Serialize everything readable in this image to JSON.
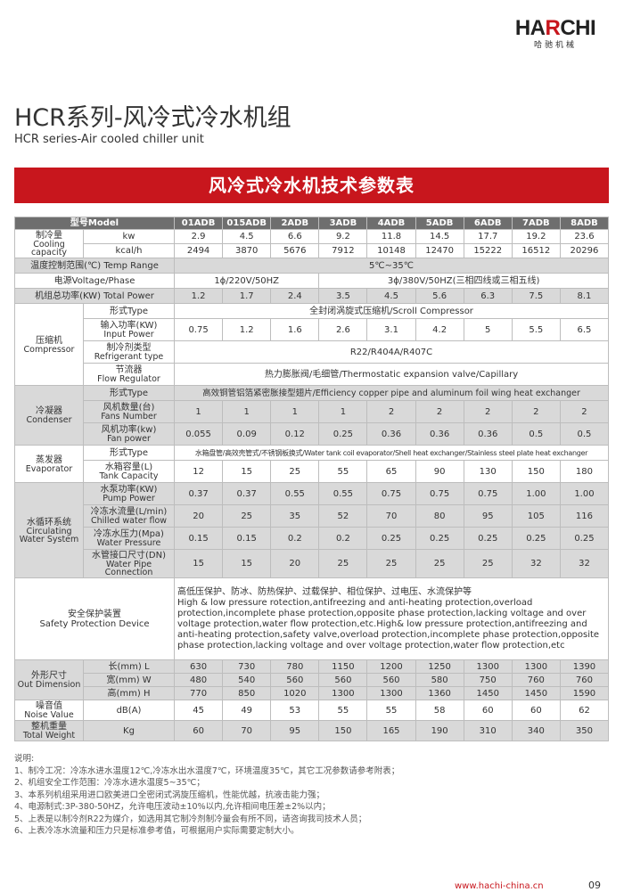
{
  "logo": {
    "brand": "HARCHI",
    "brand_cn": "哈驰机械",
    "colors": {
      "text": "#222222",
      "accent": "#c8161d"
    }
  },
  "header": {
    "title": "HCR系列-风冷式冷水机组",
    "subtitle": "HCR series-Air cooled chiller unit"
  },
  "banner": {
    "title": "风冷式冷水机技术参数表",
    "color": "#c8161d"
  },
  "table": {
    "model_label": "型号Model",
    "models": [
      "01ADB",
      "015ADB",
      "2ADB",
      "3ADB",
      "4ADB",
      "5ADB",
      "6ADB",
      "7ADB",
      "8ADB"
    ],
    "groups": [
      {
        "cn": "制冷量",
        "en": "Cooling capacity",
        "shade": false,
        "rows": [
          {
            "cn": "kw",
            "values": [
              "2.9",
              "4.5",
              "6.6",
              "9.2",
              "11.8",
              "14.5",
              "17.7",
              "19.2",
              "23.6"
            ]
          },
          {
            "cn": "kcal/h",
            "values": [
              "2494",
              "3870",
              "5676",
              "7912",
              "10148",
              "12470",
              "15222",
              "16512",
              "20296"
            ]
          }
        ]
      },
      {
        "full": "温度控制范围(℃) Temp Range",
        "shade": true,
        "spans": [
          {
            "text": "5℃~35℃",
            "span": 9
          }
        ]
      },
      {
        "full": "电源Voltage/Phase",
        "shade": false,
        "spans": [
          {
            "text": "1ϕ/220V/50HZ",
            "span": 3
          },
          {
            "text": "3ϕ/380V/50HZ(三相四线或三相五线)",
            "span": 6
          }
        ]
      },
      {
        "full": "机组总功率(KW) Total Power",
        "shade": true,
        "values": [
          "1.2",
          "1.7",
          "2.4",
          "3.5",
          "4.5",
          "5.6",
          "6.3",
          "7.5",
          "8.1"
        ]
      },
      {
        "cn": "压缩机",
        "en": "Compressor",
        "shade": false,
        "rows": [
          {
            "cn": "形式Type",
            "spans": [
              {
                "text": "全封闭涡旋式压缩机/Scroll Compressor",
                "span": 9
              }
            ]
          },
          {
            "cn": "输入功率(KW)",
            "en": "Input Power",
            "values": [
              "0.75",
              "1.2",
              "1.6",
              "2.6",
              "3.1",
              "4.2",
              "5",
              "5.5",
              "6.5"
            ]
          },
          {
            "cn": "制冷剂类型",
            "en": "Refrigerant type",
            "spans": [
              {
                "text": "R22/R404A/R407C",
                "span": 9
              }
            ]
          },
          {
            "cn": "节流器",
            "en": "Flow Regulator",
            "spans": [
              {
                "text": "热力膨胀阀/毛细管/Thermostatic expansion valve/Capillary",
                "span": 9
              }
            ]
          }
        ]
      },
      {
        "cn": "冷凝器",
        "en": "Condenser",
        "shade": true,
        "rows": [
          {
            "cn": "形式Type",
            "spans": [
              {
                "text": "高效铜管铝箔紧密胀接型翅片/Efficiency copper pipe and aluminum foil wing heat exchanger",
                "span": 9
              }
            ]
          },
          {
            "cn": "风机数量(台)",
            "en": "Fans Number",
            "values": [
              "1",
              "1",
              "1",
              "1",
              "2",
              "2",
              "2",
              "2",
              "2"
            ]
          },
          {
            "cn": "风机功率(kw)",
            "en": "Fan power",
            "values": [
              "0.055",
              "0.09",
              "0.12",
              "0.25",
              "0.36",
              "0.36",
              "0.36",
              "0.5",
              "0.5"
            ]
          }
        ]
      },
      {
        "cn": "蒸发器",
        "en": "Evaporator",
        "shade": false,
        "rows": [
          {
            "cn": "形式Type",
            "spans": [
              {
                "text": "水箱盘管/高效壳管式/不锈钢板换式/Water tank coil evaporator/Shell heat exchanger/Stainless steel plate heat exchanger",
                "span": 9
              }
            ]
          },
          {
            "cn": "水箱容量(L)",
            "en": "Tank Capacity",
            "values": [
              "12",
              "15",
              "25",
              "55",
              "65",
              "90",
              "130",
              "150",
              "180"
            ]
          }
        ]
      },
      {
        "cn": "水循环系统",
        "en": "Circulating Water System",
        "shade": true,
        "rows": [
          {
            "cn": "水泵功率(KW)",
            "en": "Pump Power",
            "values": [
              "0.37",
              "0.37",
              "0.55",
              "0.55",
              "0.75",
              "0.75",
              "0.75",
              "1.00",
              "1.00"
            ]
          },
          {
            "cn": "冷冻水流量(L/min)",
            "en": "Chilled water flow",
            "values": [
              "20",
              "25",
              "35",
              "52",
              "70",
              "80",
              "95",
              "105",
              "116"
            ]
          },
          {
            "cn": "冷冻水压力(Mpa)",
            "en": "Water Pressure",
            "values": [
              "0.15",
              "0.15",
              "0.2",
              "0.2",
              "0.25",
              "0.25",
              "0.25",
              "0.25",
              "0.25"
            ]
          },
          {
            "cn": "水管接口尺寸(DN)",
            "en": "Water Pipe Connection",
            "values": [
              "15",
              "15",
              "20",
              "25",
              "25",
              "25",
              "25",
              "32",
              "32"
            ]
          }
        ]
      },
      {
        "safety": true,
        "cn": "安全保护装置",
        "en": "Safety Protection Device",
        "shade": false,
        "text_cn": "高低压保护、防冰、防热保护、过载保护、相位保护、过电压、水流保护等",
        "text_en": "High & low pressure rotection,antifreezing and anti-heating protection,overload protection,incomplete phase protection,opposite phase protection,lacking voltage and over voltage protection,water flow protection,etc.High& low pressure protection,antifreezing and anti-heating protection,safety valve,overload protection,incomplete phase protection,opposite phase protection,lacking voltage and over voltage protection,water flow protection,etc"
      },
      {
        "cn": "外形尺寸",
        "en": "Out Dimension",
        "shade": true,
        "rows": [
          {
            "cn": "长(mm)  L",
            "values": [
              "630",
              "730",
              "780",
              "1150",
              "1200",
              "1250",
              "1300",
              "1300",
              "1390"
            ]
          },
          {
            "cn": "宽(mm)  W",
            "values": [
              "480",
              "540",
              "560",
              "560",
              "560",
              "580",
              "750",
              "760",
              "760"
            ]
          },
          {
            "cn": "高(mm)  H",
            "values": [
              "770",
              "850",
              "1020",
              "1300",
              "1300",
              "1360",
              "1450",
              "1450",
              "1590"
            ]
          }
        ]
      },
      {
        "cn": "噪音值",
        "en": "Noise Value",
        "shade": false,
        "unit": "dB(A)",
        "values": [
          "45",
          "49",
          "53",
          "55",
          "55",
          "58",
          "60",
          "60",
          "62"
        ]
      },
      {
        "cn": "整机重量",
        "en": "Total Weight",
        "shade": true,
        "unit": "Kg",
        "values": [
          "60",
          "70",
          "95",
          "150",
          "165",
          "190",
          "310",
          "340",
          "350"
        ]
      }
    ]
  },
  "notes": {
    "heading": "说明:",
    "items": [
      "1、制冷工况：冷冻水进水温度12℃,冷冻水出水温度7℃，环境温度35℃，其它工况参数请参考附表；",
      "2、机组安全工作范围：冷冻水进水温度5~35℃；",
      "3、本系列机组采用进口欧美进口全密闭式涡旋压缩机，性能优越，抗液击能力强；",
      "4、电源制式:3P-380-50HZ，允许电压波动±10%以内,允许相间电压差±2%以内；",
      "5、上表是以制冷剂R22为媒介，如选用其它制冷剂制冷量会有所不同，请咨询我司技术人员；",
      "6、上表冷冻水流量和压力只是标准参考值，可根据用户实际需要定制大小。"
    ]
  },
  "footer": {
    "url": "www.hachi-china.cn",
    "page": "09"
  }
}
